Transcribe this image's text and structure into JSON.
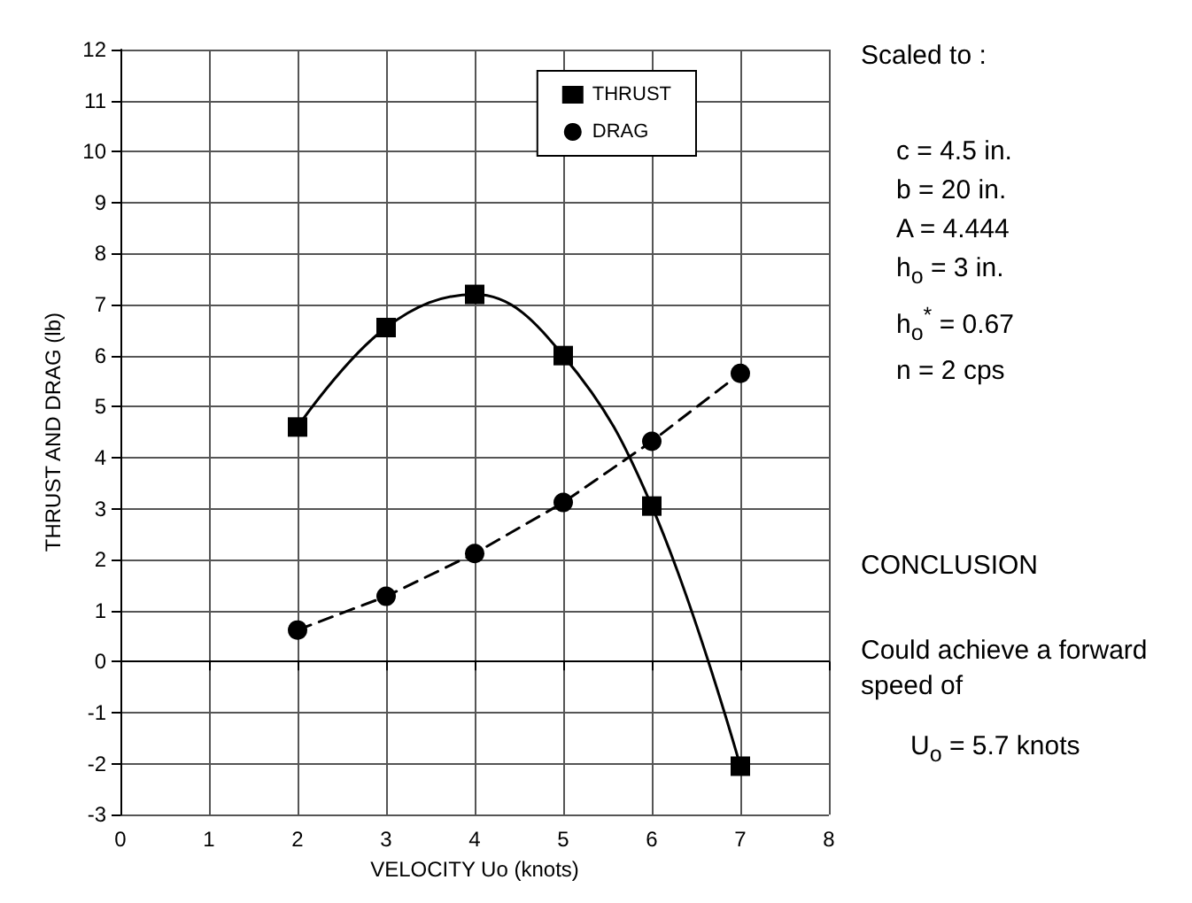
{
  "chart_data": {
    "type": "line",
    "xlabel": "VELOCITY Uo (knots)",
    "ylabel": "THRUST AND DRAG (lb)",
    "x": [
      2,
      3,
      4,
      5,
      6,
      7
    ],
    "series": [
      {
        "name": "THRUST",
        "color": "#000000",
        "marker": "square",
        "line_style": "solid",
        "values": [
          4.6,
          6.55,
          7.2,
          6.0,
          3.05,
          -2.05
        ]
      },
      {
        "name": "DRAG",
        "color": "#000000",
        "marker": "circle",
        "line_style": "dashed",
        "values": [
          0.62,
          1.28,
          2.12,
          3.12,
          4.32,
          5.65
        ]
      }
    ],
    "xlim": [
      0,
      8
    ],
    "xticks": [
      0,
      1,
      2,
      3,
      4,
      5,
      6,
      7,
      8
    ],
    "ylim": [
      -3,
      12
    ],
    "yticks": [
      -3,
      -2,
      -1,
      0,
      1,
      2,
      3,
      4,
      5,
      6,
      7,
      8,
      9,
      10,
      11,
      12
    ],
    "grid": true,
    "legend": "top right",
    "annotations": [
      "Scaled to :",
      "c = 4.5 in.",
      "b = 20 in.",
      "A = 4.444",
      "h$_{o}$ = 3 in.",
      "h$_{o}$$^{*}$ = 0.67",
      "n = 2 cps",
      "CONCLUSION",
      "Could achieve a forward speed of",
      "U$_{o}$ = 5.7 knots"
    ]
  }
}
